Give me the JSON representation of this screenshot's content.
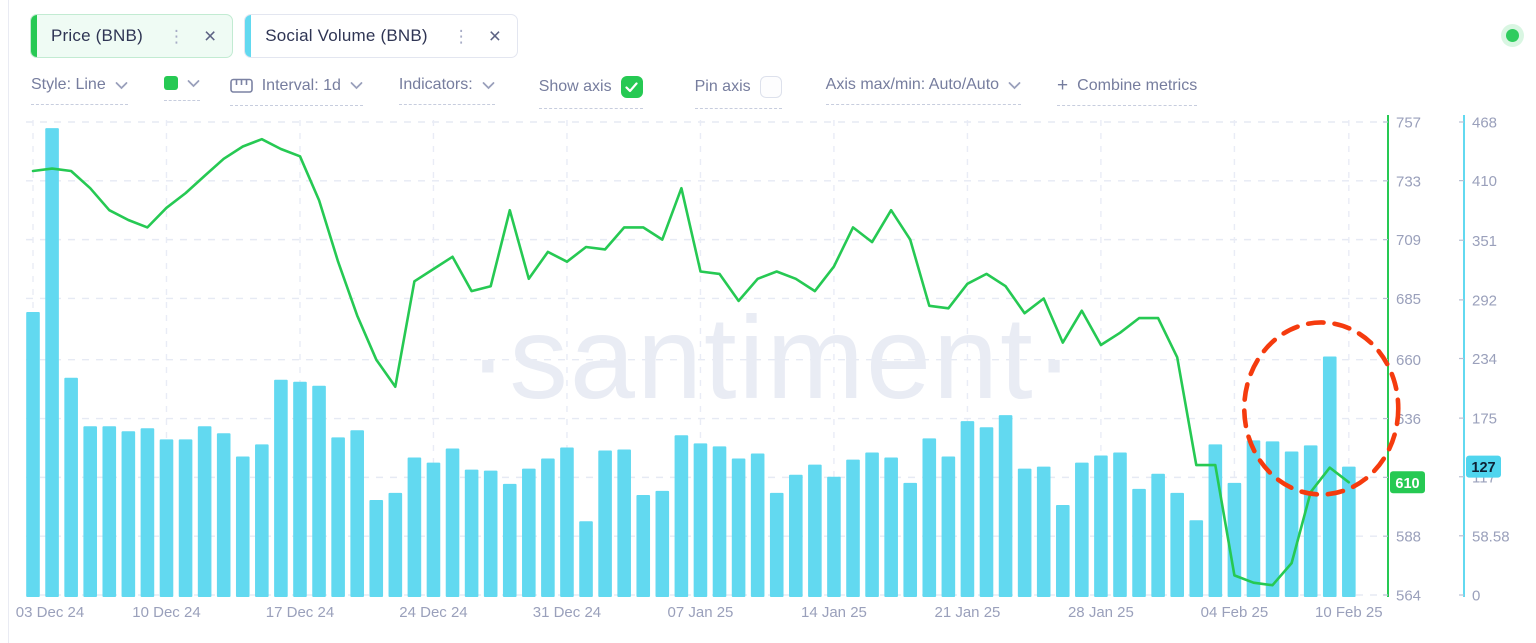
{
  "header": {
    "tabs": [
      {
        "label": "Price (BNB)",
        "accent_color": "#26c953"
      },
      {
        "label": "Social Volume (BNB)",
        "accent_color": "#62d9f0"
      }
    ],
    "status_dot_color": "#2fcc5e"
  },
  "toolbar": {
    "style": "Style: Line",
    "series_color": "#26c953",
    "interval": "Interval: 1d",
    "indicators": "Indicators:",
    "show_axis": "Show axis",
    "show_axis_checked": true,
    "pin_axis": "Pin axis",
    "pin_axis_checked": false,
    "axis_maxmin": "Axis max/min: Auto/Auto",
    "plus": "+",
    "combine_metrics": "Combine metrics"
  },
  "chart_data": {
    "type": "line+bar",
    "watermark": "·santiment·",
    "grid": true,
    "x_unit": "day",
    "x_range": [
      "03 Dec 24",
      "10 Feb 25"
    ],
    "x_tick_labels": [
      "03 Dec 24",
      "10 Dec 24",
      "17 Dec 24",
      "24 Dec 24",
      "31 Dec 24",
      "07 Jan 25",
      "14 Jan 25",
      "21 Jan 25",
      "28 Jan 25",
      "04 Feb 25",
      "10 Feb 25"
    ],
    "x_tick_day_indices": [
      0,
      7,
      14,
      21,
      28,
      35,
      42,
      49,
      56,
      63,
      69
    ],
    "series": [
      {
        "name": "Price (BNB)",
        "type": "line",
        "color": "#26c953",
        "axis": "price",
        "values": [
          737,
          738,
          737,
          730,
          721,
          717,
          714,
          722,
          728,
          735,
          742,
          747,
          750,
          746,
          743,
          725,
          700,
          678,
          660,
          649,
          692,
          697,
          702,
          688,
          690,
          721,
          693,
          704,
          700,
          706,
          705,
          714,
          714,
          709,
          730,
          696,
          695,
          684,
          693,
          696,
          693,
          688,
          698,
          714,
          708,
          721,
          709,
          682,
          681,
          691,
          695,
          690,
          679,
          685,
          667,
          680,
          666,
          671,
          677,
          677,
          661,
          617,
          617,
          572,
          569,
          568,
          577,
          606,
          616,
          610
        ]
      },
      {
        "name": "Social Volume (BNB)",
        "type": "bar",
        "color": "#62d9f0",
        "axis": "volume",
        "values": [
          280,
          462,
          215,
          167,
          167,
          162,
          165,
          154,
          154,
          167,
          160,
          137,
          149,
          213,
          211,
          207,
          156,
          163,
          94,
          101,
          136,
          131,
          145,
          124,
          123,
          110,
          125,
          135,
          146,
          73,
          143,
          144,
          99,
          103,
          158,
          150,
          147,
          135,
          140,
          101,
          119,
          129,
          117,
          134,
          141,
          136,
          111,
          155,
          137,
          172,
          166,
          178,
          125,
          127,
          89,
          131,
          138,
          141,
          105,
          120,
          101,
          74,
          149,
          111,
          153,
          152,
          142,
          148,
          236,
          127
        ]
      }
    ],
    "price_axis": {
      "side": "right",
      "color": "#26c953",
      "min": 564,
      "max": 757,
      "ticks": [
        757,
        733,
        709,
        685,
        660,
        636,
        612,
        588,
        564
      ],
      "current_value": 610,
      "current_label": "610"
    },
    "volume_axis": {
      "side": "far-right",
      "color": "#62d9f0",
      "min": 0,
      "max": 468,
      "ticks": [
        468,
        410,
        351,
        292,
        234,
        175,
        117,
        58.58,
        0
      ],
      "current_value": 127,
      "current_label": "127"
    },
    "annotation": {
      "shape": "dashed-ellipse",
      "color": "#f53b0e",
      "around_day_index": 68
    }
  }
}
